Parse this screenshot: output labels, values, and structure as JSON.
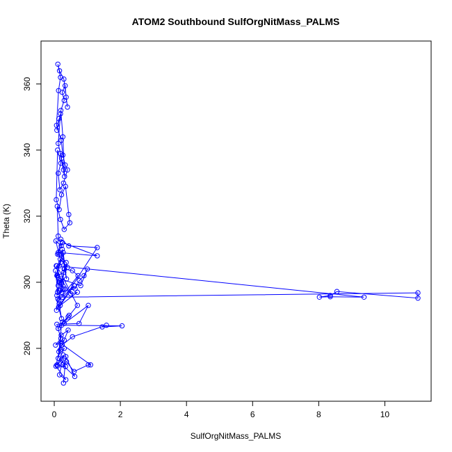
{
  "chart_data": {
    "type": "line",
    "title": "ATOM2 Southbound SulfOrgNitMass_PALMS",
    "xlabel": "SulfOrgNitMass_PALMS",
    "ylabel": "Theta (K)",
    "xlim": [
      -0.4,
      11.4
    ],
    "ylim": [
      264.0,
      373.0
    ],
    "x_ticks": [
      0,
      2,
      4,
      6,
      8,
      10
    ],
    "y_ticks": [
      280,
      300,
      320,
      340,
      360
    ],
    "grid": false,
    "legend": "none",
    "marker": "open-circle",
    "color": "#0000ff",
    "series": [
      {
        "x": [
          0.14,
          0.08,
          0.19,
          0.12,
          0.22,
          0.28,
          0.18,
          0.31,
          0.26,
          0.2,
          0.3,
          0.24,
          0.33,
          0.36,
          0.4,
          0.29,
          0.16,
          0.11,
          0.19,
          0.13,
          0.07,
          0.21,
          0.26,
          0.33,
          0.4,
          0.28,
          0.17,
          0.12,
          0.2,
          0.1,
          0.06,
          0.15,
          0.22,
          0.34,
          0.44,
          0.47,
          0.3,
          0.19,
          0.09,
          0.12,
          0.21,
          0.05,
          0.14,
          0.2,
          0.24,
          0.31,
          0.37,
          0.27,
          0.16,
          0.08,
          0.12,
          0.04,
          0.1,
          0.18,
          0.25,
          0.11,
          0.07,
          0.15,
          0.22,
          0.13,
          1.3,
          0.44,
          0.2,
          0.12,
          1.3,
          0.25,
          0.1,
          0.36,
          0.4,
          0.18,
          0.1,
          0.29,
          0.22,
          0.06,
          0.16,
          0.13,
          0.08,
          0.29,
          0.22,
          0.14,
          0.72,
          0.55,
          0.3,
          0.22,
          0.63,
          0.76,
          0.9,
          1.0,
          0.8,
          0.2,
          0.5,
          0.7,
          0.18,
          0.6,
          0.25,
          11.0,
          11.0,
          8.55,
          8.35,
          8.02,
          8.35,
          9.37,
          0.08,
          0.7,
          0.42,
          0.25,
          0.12,
          0.45,
          0.3,
          1.03,
          0.75,
          0.08,
          0.2,
          0.04,
          0.3,
          0.14,
          0.21,
          0.42,
          0.24,
          0.55,
          1.58,
          1.45,
          2.05,
          0.22,
          0.12,
          0.18,
          0.3,
          0.08,
          0.22,
          0.34,
          0.1,
          0.27,
          0.16,
          0.35,
          0.05,
          0.2,
          1.1,
          1.03,
          0.6,
          0.37,
          0.25,
          0.62,
          0.35,
          0.28
        ],
        "y": [
          349.5,
          346.0,
          351.0,
          342.0,
          337.5,
          334.0,
          339.0,
          332.0,
          344.0,
          352.0,
          355.0,
          357.5,
          359.5,
          356.0,
          353.0,
          361.5,
          364.0,
          366.0,
          362.0,
          358.0,
          347.5,
          343.0,
          338.5,
          335.5,
          334.0,
          330.0,
          328.0,
          333.0,
          336.0,
          340.0,
          325.0,
          322.0,
          326.5,
          329.0,
          320.5,
          318.0,
          316.0,
          319.0,
          323.0,
          314.0,
          311.0,
          312.5,
          308.5,
          306.0,
          310.0,
          304.0,
          301.0,
          309.0,
          305.0,
          302.0,
          299.0,
          303.5,
          297.0,
          300.5,
          298.0,
          295.0,
          291.5,
          293.5,
          289.0,
          292.5,
          310.5,
          311.0,
          313.0,
          309.0,
          308.0,
          312.0,
          308.5,
          306.0,
          304.5,
          307.0,
          302.0,
          303.0,
          300.0,
          305.0,
          300.0,
          297.5,
          296.0,
          298.0,
          299.5,
          294.5,
          302.0,
          303.5,
          304.0,
          297.0,
          298.0,
          300.5,
          302.0,
          304.0,
          299.0,
          301.0,
          296.5,
          297.0,
          293.0,
          299.0,
          295.5,
          296.8,
          295.2,
          297.2,
          296.0,
          295.5,
          295.6,
          295.5,
          305.0,
          293.0,
          289.5,
          288.0,
          286.0,
          290.0,
          287.5,
          293.0,
          287.5,
          287.3,
          283.0,
          281.0,
          282.5,
          279.0,
          284.0,
          285.5,
          281.0,
          283.5,
          287.0,
          286.5,
          286.8,
          287.0,
          277.0,
          279.5,
          280.0,
          275.0,
          276.5,
          274.5,
          274.7,
          278.0,
          272.0,
          270.5,
          274.6,
          281.5,
          275.0,
          275.0,
          273.0,
          276.0,
          275.0,
          271.5,
          277.5,
          269.5
        ]
      }
    ]
  }
}
